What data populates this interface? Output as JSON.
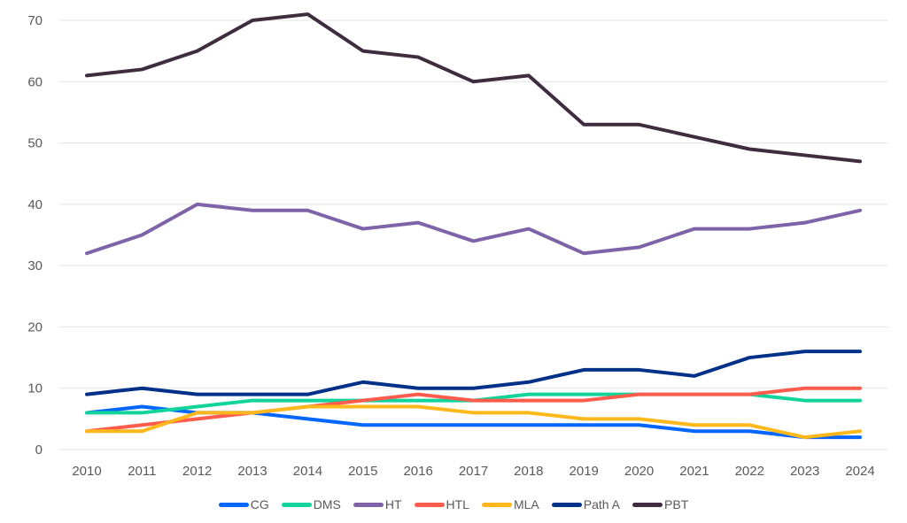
{
  "chart_data": {
    "type": "line",
    "title": "",
    "xlabel": "",
    "ylabel": "",
    "ylim": [
      0,
      70
    ],
    "yticks": [
      0,
      10,
      20,
      30,
      40,
      50,
      60,
      70
    ],
    "grid": true,
    "legend_position": "bottom",
    "x": [
      "2010",
      "2011",
      "2012",
      "2013",
      "2014",
      "2015",
      "2016",
      "2017",
      "2018",
      "2019",
      "2020",
      "2021",
      "2022",
      "2023",
      "2024"
    ],
    "series": [
      {
        "name": "CG",
        "color": "#0066ff",
        "values": [
          6,
          7,
          6,
          6,
          5,
          4,
          4,
          4,
          4,
          4,
          4,
          3,
          3,
          2,
          2
        ]
      },
      {
        "name": "DMS",
        "color": "#12d49a",
        "values": [
          6,
          6,
          7,
          8,
          8,
          8,
          8,
          8,
          9,
          9,
          9,
          9,
          9,
          8,
          8
        ]
      },
      {
        "name": "HT",
        "color": "#7f63a8",
        "values": [
          32,
          35,
          40,
          39,
          39,
          36,
          37,
          34,
          36,
          32,
          33,
          36,
          36,
          37,
          39
        ]
      },
      {
        "name": "HTL",
        "color": "#ff5c4d",
        "values": [
          3,
          4,
          5,
          6,
          7,
          8,
          9,
          8,
          8,
          8,
          9,
          9,
          9,
          10,
          10
        ]
      },
      {
        "name": "MLA",
        "color": "#ffb81c",
        "values": [
          3,
          3,
          6,
          6,
          7,
          7,
          7,
          6,
          6,
          5,
          5,
          4,
          4,
          2,
          3
        ]
      },
      {
        "name": "Path A",
        "color": "#003087",
        "values": [
          9,
          10,
          9,
          9,
          9,
          11,
          10,
          10,
          11,
          13,
          13,
          12,
          15,
          16,
          16
        ]
      },
      {
        "name": "PBT",
        "color": "#3f2c3f",
        "values": [
          61,
          62,
          65,
          70,
          71,
          65,
          64,
          60,
          61,
          53,
          53,
          51,
          49,
          48,
          47
        ]
      }
    ]
  }
}
